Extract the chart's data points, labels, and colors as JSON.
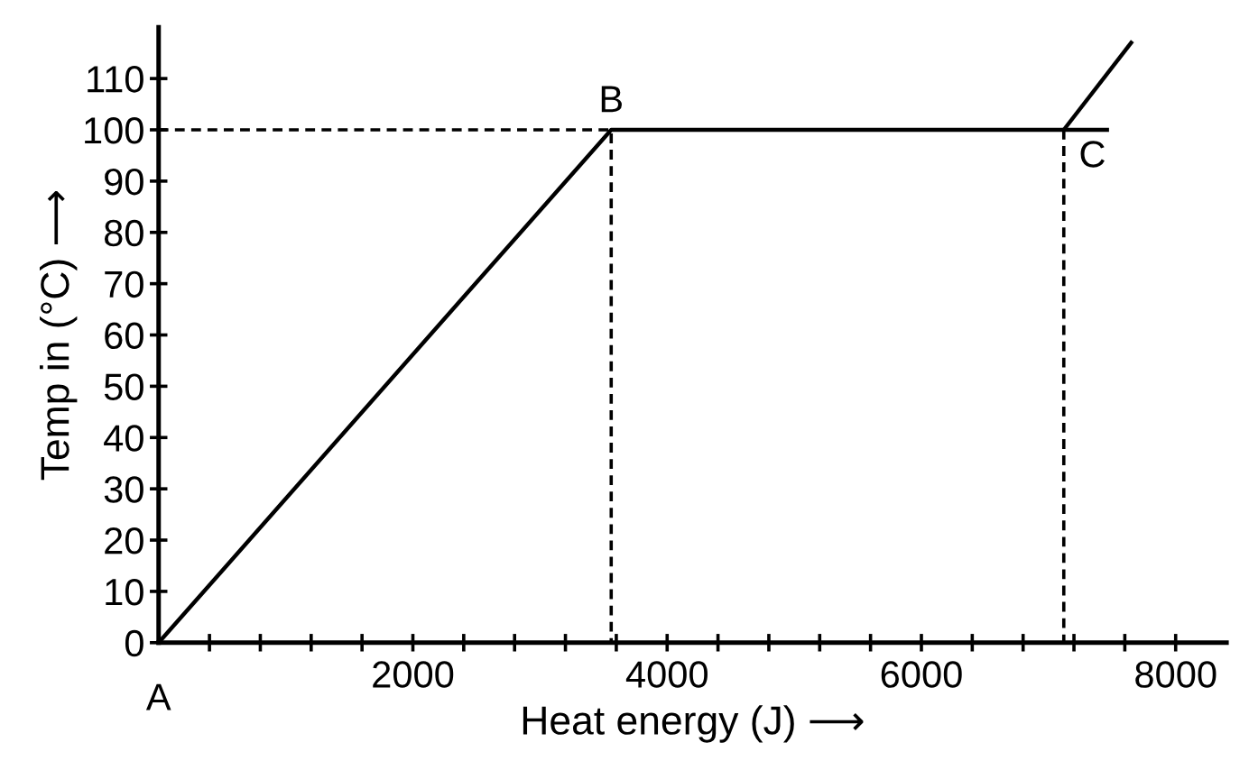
{
  "chart_data": {
    "type": "line",
    "xlabel": "Heat energy (J) ⟶",
    "ylabel": "Temp in (°C) ⟶",
    "series": [
      {
        "color": "#000000",
        "x": [
          0,
          3560,
          7460
        ],
        "values": [
          0,
          100,
          100
        ]
      },
      {
        "color": "#000000",
        "x": [
          7120,
          7650
        ],
        "values": [
          100,
          117
        ]
      },
      {
        "color": "#000000",
        "x": [
          0,
          3560,
          3560
        ],
        "values": [
          100,
          100,
          0
        ],
        "line_style": "dashed"
      },
      {
        "color": "#000000",
        "x": [
          7120,
          7120
        ],
        "values": [
          100,
          0
        ],
        "line_style": "dashed"
      }
    ],
    "xlim": [
      0,
      8400
    ],
    "ylim": [
      0,
      120
    ],
    "xticks": [
      {
        "value": 400,
        "label": null
      },
      {
        "value": 800,
        "label": null
      },
      {
        "value": 1200,
        "label": null
      },
      {
        "value": 1600,
        "label": null
      },
      2000,
      {
        "value": 2400,
        "label": null
      },
      {
        "value": 2800,
        "label": null
      },
      {
        "value": 3200,
        "label": null
      },
      {
        "value": 3600,
        "label": null
      },
      4000,
      {
        "value": 4400,
        "label": null
      },
      {
        "value": 4800,
        "label": null
      },
      {
        "value": 5200,
        "label": null
      },
      {
        "value": 5600,
        "label": null
      },
      6000,
      {
        "value": 6400,
        "label": null
      },
      {
        "value": 6800,
        "label": null
      },
      {
        "value": 7200,
        "label": null
      },
      {
        "value": 7600,
        "label": null
      },
      8000
    ],
    "yticks": [
      0,
      10,
      20,
      30,
      40,
      50,
      60,
      70,
      80,
      90,
      100,
      110
    ],
    "annotations": [
      {
        "text": "A",
        "x": 0,
        "y": 0
      },
      {
        "text": "B",
        "x": 3560,
        "y": 100
      },
      {
        "text": "C",
        "x": 7120,
        "y": 100
      }
    ],
    "grid": false,
    "legend": false,
    "marker": "none",
    "line_style": "solid"
  }
}
